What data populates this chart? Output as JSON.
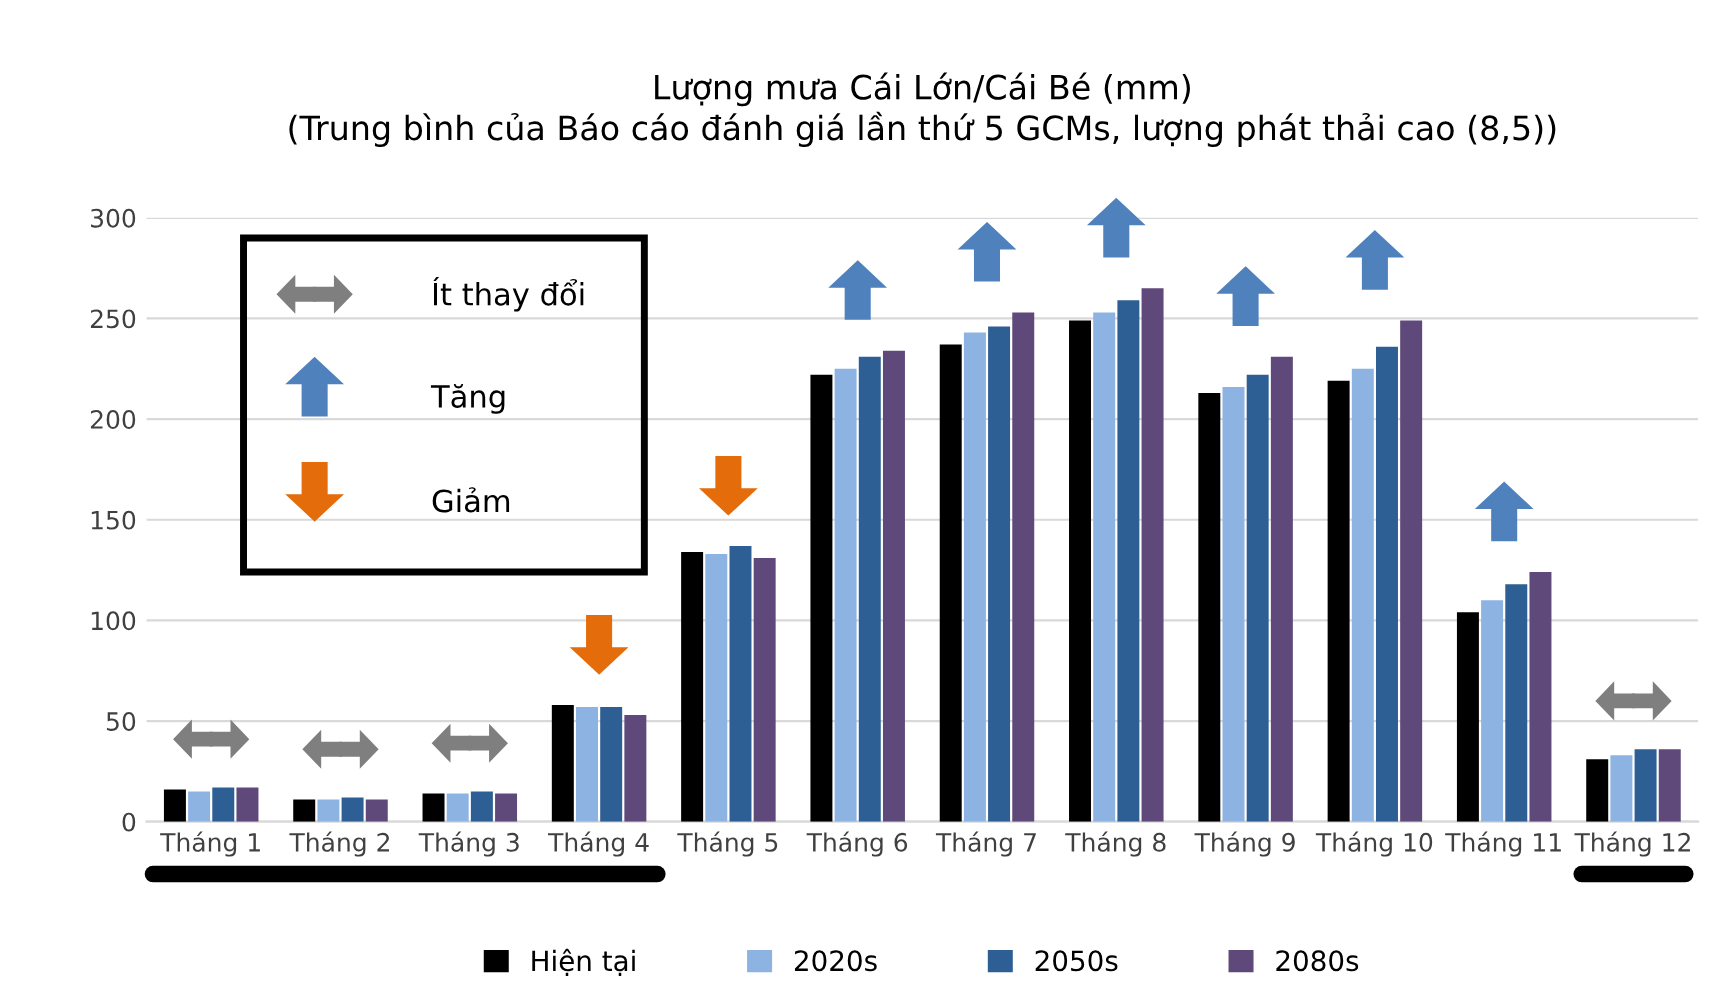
{
  "chart_data": {
    "type": "bar",
    "title": "Lượng mưa Cái Lớn/Cái Bé (mm)\n(Trung bình của Báo cáo đánh giá lần thứ 5 GCMs, lượng phát thải cao (8,5))",
    "categories": [
      "Tháng 1",
      "Tháng 2",
      "Tháng 3",
      "Tháng 4",
      "Tháng 5",
      "Tháng 6",
      "Tháng 7",
      "Tháng 8",
      "Tháng 9",
      "Tháng 10",
      "Tháng 11",
      "Tháng 12"
    ],
    "series": [
      {
        "name": "Hiện tại",
        "color": "#000000",
        "values": [
          16,
          11,
          14,
          58,
          134,
          222,
          237,
          249,
          213,
          219,
          104,
          31
        ]
      },
      {
        "name": "2020s",
        "color": "#8db3e2",
        "values": [
          15,
          11,
          14,
          57,
          133,
          225,
          243,
          253,
          216,
          225,
          110,
          33
        ]
      },
      {
        "name": "2050s",
        "color": "#2e5f94",
        "values": [
          17,
          12,
          15,
          57,
          137,
          231,
          246,
          259,
          222,
          236,
          118,
          36
        ]
      },
      {
        "name": "2080s",
        "color": "#5f497a",
        "values": [
          17,
          11,
          14,
          53,
          131,
          234,
          253,
          265,
          231,
          249,
          124,
          36
        ]
      }
    ],
    "ylim": [
      0,
      300
    ],
    "yticks": [
      0,
      50,
      100,
      150,
      200,
      250,
      300
    ],
    "grid": "y",
    "legend": "bottom",
    "annotations": [
      "Ít thay đổi",
      "Tăng",
      "Giảm"
    ]
  }
}
